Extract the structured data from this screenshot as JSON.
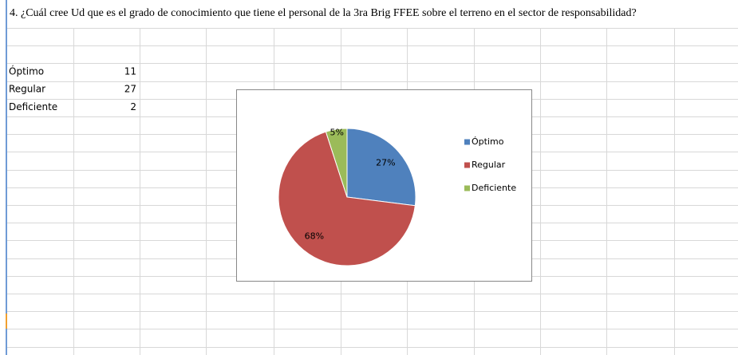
{
  "title": "4. ¿Cuál cree Ud que es el grado de conocimiento que tiene el personal de la 3ra Brig FFEE sobre el terreno en el sector de responsabilidad?",
  "table": {
    "rows": [
      [
        "Óptimo",
        11
      ],
      [
        "Regular",
        27
      ],
      [
        "Deficiente",
        2
      ]
    ]
  },
  "chart_data": {
    "type": "pie",
    "categories": [
      "Óptimo",
      "Regular",
      "Deficiente"
    ],
    "values": [
      27,
      68,
      5
    ],
    "value_labels": [
      "27%",
      "68%",
      "5%"
    ],
    "colors": [
      "#4f81bd",
      "#c0504d",
      "#9bbb59"
    ],
    "legend": "right"
  }
}
